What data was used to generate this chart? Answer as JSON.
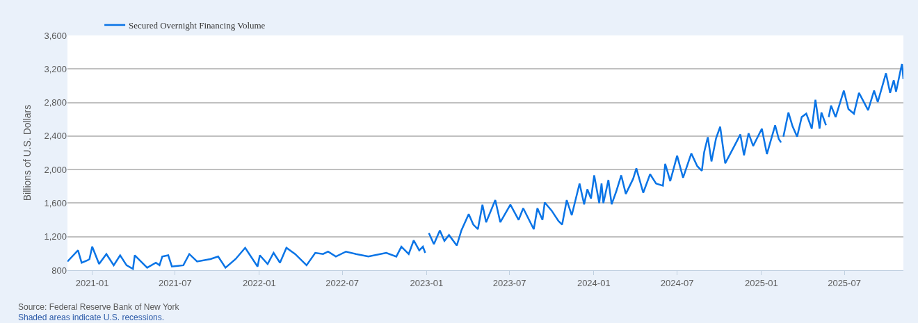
{
  "chart_data": {
    "type": "line",
    "ylabel": "Billions of U.S. Dollars",
    "annotations": [
      "Source: Federal Reserve Bank of New York",
      "Shaded areas indicate U.S. recessions."
    ],
    "legend": "top left",
    "grid": "y",
    "line_style": "solid",
    "marker": "none",
    "xlim": [
      "2020-11-08",
      "2025-11-07"
    ],
    "xticks": [
      "2021-01",
      "2021-07",
      "2022-01",
      "2022-07",
      "2023-01",
      "2023-07",
      "2024-01",
      "2024-07",
      "2025-01",
      "2025-07"
    ],
    "ylim": [
      800,
      3600
    ],
    "yticks": [
      {
        "value": 800,
        "label": "800"
      },
      {
        "value": 1200,
        "label": "1,200"
      },
      {
        "value": 1600,
        "label": "1,600"
      },
      {
        "value": 2000,
        "label": "2,000"
      },
      {
        "value": 2400,
        "label": "2,400"
      },
      {
        "value": 2800,
        "label": "2,800"
      },
      {
        "value": 3200,
        "label": "3,200"
      },
      {
        "value": 3600,
        "label": "3,600"
      }
    ],
    "series": [
      {
        "name": "Secured Overnight Financing Volume",
        "color": "#0a74e6",
        "x": [
          "2020-11-08",
          "2020-12-01",
          "2020-12-09",
          "2020-12-22",
          "2020-12-26",
          "2021-01-01",
          "2021-01-16",
          "2021-02-01",
          "2021-02-17",
          "2021-03-03",
          "2021-03-17",
          "2021-03-31",
          "2021-04-04",
          "2021-05-01",
          "2021-05-20",
          "2021-05-28",
          "2021-06-03",
          "2021-06-16",
          "2021-06-24",
          "2021-07-19",
          "2021-08-01",
          "2021-08-18",
          "2021-09-16",
          "2021-10-03",
          "2021-10-19",
          "2021-11-10",
          "2021-12-01",
          "2021-12-28",
          "2022-01-02",
          "2022-01-19",
          "2022-02-01",
          "2022-02-15",
          "2022-03-01",
          "2022-03-20",
          "2022-04-14",
          "2022-05-03",
          "2022-05-20",
          "2022-05-31",
          "2022-06-17",
          "2022-07-09",
          "2022-07-31",
          "2022-08-27",
          "2022-10-05",
          "2022-10-27",
          "2022-11-07",
          "2022-11-23",
          "2022-12-04",
          "2022-12-16",
          "2022-12-24",
          "2022-12-29",
          "2023-01-02",
          "2023-01-06",
          "2023-01-17",
          "2023-01-30",
          "2023-02-09",
          "2023-02-19",
          "2023-03-08",
          "2023-03-18",
          "2023-04-03",
          "2023-04-13",
          "2023-04-23",
          "2023-05-03",
          "2023-05-11",
          "2023-05-31",
          "2023-06-11",
          "2023-07-03",
          "2023-07-21",
          "2023-07-31",
          "2023-08-23",
          "2023-08-31",
          "2023-09-11",
          "2023-09-16",
          "2023-10-01",
          "2023-10-16",
          "2023-10-24",
          "2023-11-03",
          "2023-11-14",
          "2023-12-01",
          "2023-12-11",
          "2023-12-18",
          "2023-12-26",
          "2024-01-02",
          "2024-01-13",
          "2024-01-18",
          "2024-01-22",
          "2024-02-02",
          "2024-02-09",
          "2024-02-19",
          "2024-03-01",
          "2024-03-11",
          "2024-03-27",
          "2024-04-03",
          "2024-04-18",
          "2024-05-03",
          "2024-05-16",
          "2024-05-31",
          "2024-06-05",
          "2024-06-16",
          "2024-07-01",
          "2024-07-14",
          "2024-08-01",
          "2024-08-14",
          "2024-08-24",
          "2024-08-29",
          "2024-09-06",
          "2024-09-14",
          "2024-09-24",
          "2024-10-03",
          "2024-10-14",
          "2024-11-03",
          "2024-11-16",
          "2024-11-24",
          "2024-12-04",
          "2024-12-14",
          "2025-01-02",
          "2025-01-13",
          "2025-01-31",
          "2025-02-08",
          "2025-02-13",
          "2025-02-16",
          "2025-02-18",
          "2025-03-01",
          "2025-03-10",
          "2025-03-20",
          "2025-03-30",
          "2025-04-09",
          "2025-04-21",
          "2025-04-29",
          "2025-05-08",
          "2025-05-12",
          "2025-05-22",
          "2025-05-25",
          "2025-05-28",
          "2025-06-02",
          "2025-06-12",
          "2025-06-30",
          "2025-07-10",
          "2025-07-22",
          "2025-08-02",
          "2025-08-22",
          "2025-09-04",
          "2025-09-12",
          "2025-09-30",
          "2025-10-09",
          "2025-10-17",
          "2025-10-22",
          "2025-11-01",
          "2025-11-04",
          "2025-11-07"
        ],
        "values": [
          904,
          1037,
          889,
          918,
          933,
          1081,
          874,
          993,
          859,
          978,
          859,
          815,
          978,
          830,
          889,
          859,
          963,
          978,
          844,
          859,
          993,
          904,
          933,
          963,
          830,
          933,
          1067,
          844,
          978,
          874,
          1007,
          889,
          1067,
          993,
          859,
          1007,
          993,
          1022,
          963,
          1022,
          993,
          963,
          1007,
          963,
          1081,
          993,
          1156,
          1037,
          1081,
          1007,
          null,
          1244,
          1111,
          1275,
          1150,
          1219,
          1094,
          1275,
          1469,
          1344,
          1289,
          1581,
          1372,
          1636,
          1372,
          1581,
          1400,
          1539,
          1289,
          1539,
          1400,
          1608,
          1511,
          1386,
          1344,
          1636,
          1456,
          1834,
          1586,
          1765,
          1655,
          1931,
          1600,
          1834,
          1600,
          1876,
          1586,
          1738,
          1931,
          1710,
          1890,
          2014,
          1724,
          1945,
          1834,
          1807,
          2069,
          1862,
          2166,
          1903,
          2193,
          2041,
          1986,
          2207,
          2386,
          2097,
          2373,
          2511,
          2075,
          2282,
          2419,
          2171,
          2433,
          2282,
          2488,
          2185,
          2529,
          2364,
          2323,
          null,
          2392,
          2681,
          2516,
          2392,
          2626,
          2667,
          2488,
          2832,
          2488,
          2681,
          2529,
          null,
          2626,
          2763,
          2626,
          2942,
          2722,
          2667,
          2915,
          2708,
          2942,
          2805,
          3149,
          2915,
          3066,
          2929,
          3190,
          3259,
          3080
        ]
      }
    ]
  }
}
